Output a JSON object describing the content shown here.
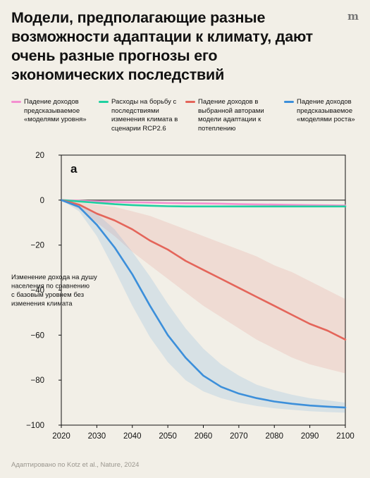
{
  "title": "Модели, предполагающие разные возможности адаптации к климату, дают очень разные прогнозы его экономических последствий",
  "logo": "m",
  "footer": "Адаптировано по Kotz et al., Nature, 2024",
  "colors": {
    "background": "#f2efe7",
    "pink": "#f48fd0",
    "green": "#20d0a0",
    "red": "#e4655a",
    "blue": "#3c8fda"
  },
  "chart_data": {
    "type": "line",
    "panel_label": "a",
    "ylabel": "Изменение дохода на душу населения по сравнению с базовым уровнем без изменения климата",
    "xlim": [
      2020,
      2100
    ],
    "ylim": [
      -100,
      20
    ],
    "xticks": [
      "2020",
      "2030",
      "2040",
      "2050",
      "2060",
      "2070",
      "2080",
      "2090",
      "2100"
    ],
    "yticks": [
      "20",
      "0",
      "−20",
      "−40",
      "−60",
      "−80",
      "−100"
    ],
    "x": [
      2020,
      2025,
      2030,
      2035,
      2040,
      2045,
      2050,
      2055,
      2060,
      2065,
      2070,
      2075,
      2080,
      2085,
      2090,
      2095,
      2100
    ],
    "series": [
      {
        "name": "Падение доходов предсказываемое «моделями уровня»",
        "color": "#f48fd0",
        "values": [
          0,
          -0.3,
          -0.6,
          -0.8,
          -1.0,
          -1.1,
          -1.3,
          -1.4,
          -1.5,
          -1.6,
          -1.8,
          -1.9,
          -2.0,
          -2.1,
          -2.2,
          -2.3,
          -2.4
        ]
      },
      {
        "name": "Расходы на борьбу с последствиями изменения климата в сценарии RCP2.6",
        "color": "#20d0a0",
        "values": [
          0,
          -0.6,
          -1.2,
          -1.8,
          -2.2,
          -2.5,
          -2.7,
          -2.8,
          -2.8,
          -2.8,
          -2.8,
          -2.8,
          -2.8,
          -2.8,
          -2.8,
          -2.8,
          -2.8
        ]
      },
      {
        "name": "Падение доходов в выбранной авторами модели адаптации к потеплению",
        "color": "#e4655a",
        "values": [
          0,
          -2,
          -6,
          -9,
          -13,
          -18,
          -22,
          -27,
          -31,
          -35,
          -39,
          -43,
          -47,
          -51,
          -55,
          -58,
          -62
        ],
        "lower": [
          0,
          -4,
          -10,
          -16,
          -23,
          -29,
          -35,
          -41,
          -47,
          -52,
          -57,
          -62,
          -66,
          -70,
          -73,
          -75,
          -77
        ],
        "upper": [
          0,
          -1,
          -2,
          -3,
          -5,
          -7,
          -10,
          -13,
          -16,
          -19,
          -22,
          -25,
          -29,
          -32,
          -36,
          -40,
          -44
        ]
      },
      {
        "name": "Падение доходов предсказываемое «моделями роста»",
        "color": "#3c8fda",
        "values": [
          0,
          -3,
          -11,
          -21,
          -33,
          -47,
          -60,
          -70,
          -78,
          -83,
          -86,
          -88,
          -89.5,
          -90.5,
          -91.3,
          -91.8,
          -92.2
        ],
        "lower": [
          0,
          -5,
          -16,
          -31,
          -47,
          -61,
          -72,
          -80,
          -85,
          -88,
          -90,
          -91.5,
          -92.5,
          -93.2,
          -93.8,
          -94.2,
          -94.5
        ],
        "upper": [
          0,
          -2,
          -6,
          -13,
          -23,
          -34,
          -46,
          -57,
          -66,
          -73,
          -78,
          -82,
          -84.5,
          -86.5,
          -88,
          -89,
          -90
        ]
      }
    ],
    "grid": false,
    "legend_position": "top"
  }
}
